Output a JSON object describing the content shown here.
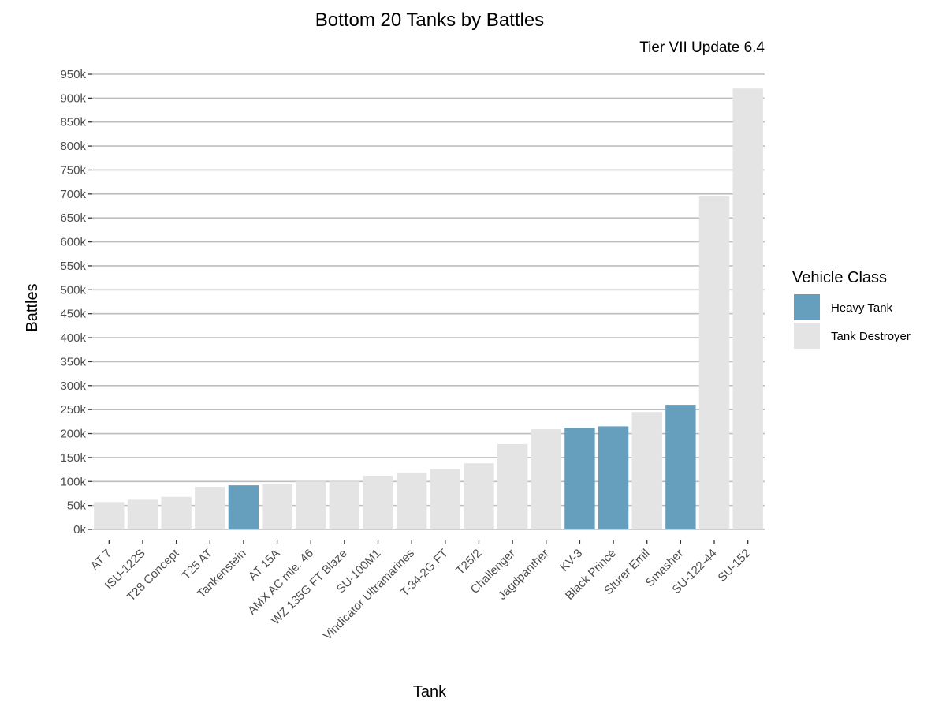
{
  "chart_data": {
    "type": "bar",
    "title": "Bottom 20 Tanks by Battles",
    "subtitle": "Tier VII Update 6.4",
    "xlabel": "Tank",
    "ylabel": "Battles",
    "ylim": [
      0,
      950000
    ],
    "y_ticks": [
      0,
      50000,
      100000,
      150000,
      200000,
      250000,
      300000,
      350000,
      400000,
      450000,
      500000,
      550000,
      600000,
      650000,
      700000,
      750000,
      800000,
      850000,
      900000,
      950000
    ],
    "y_tick_labels": [
      "0k",
      "50k",
      "100k",
      "150k",
      "200k",
      "250k",
      "300k",
      "350k",
      "400k",
      "450k",
      "500k",
      "550k",
      "600k",
      "650k",
      "700k",
      "750k",
      "800k",
      "850k",
      "900k",
      "950k"
    ],
    "grid": true,
    "legend_position": "right",
    "legend_title": "Vehicle Class",
    "classes": [
      {
        "name": "Heavy Tank",
        "color": "#659fbd"
      },
      {
        "name": "Tank Destroyer",
        "color": "#e4e4e4"
      }
    ],
    "categories": [
      "AT 7",
      "ISU-122S",
      "T28 Concept",
      "T25 AT",
      "Tankenstein",
      "AT 15A",
      "AMX AC mle. 46",
      "WZ 135G FT Blaze",
      "SU-100M1",
      "Vindicator Ultramarines",
      "T-34-2G FT",
      "T25/2",
      "Challenger",
      "Jagdpanther",
      "KV-3",
      "Black Prince",
      "Sturer Emil",
      "Smasher",
      "SU-122-44",
      "SU-152"
    ],
    "values": [
      57000,
      62000,
      68000,
      89000,
      92000,
      94000,
      100000,
      100000,
      112000,
      118000,
      126000,
      138000,
      178000,
      209000,
      212000,
      215000,
      245000,
      260000,
      695000,
      920000
    ],
    "vehicle_class": [
      "Tank Destroyer",
      "Tank Destroyer",
      "Tank Destroyer",
      "Tank Destroyer",
      "Heavy Tank",
      "Tank Destroyer",
      "Tank Destroyer",
      "Tank Destroyer",
      "Tank Destroyer",
      "Tank Destroyer",
      "Tank Destroyer",
      "Tank Destroyer",
      "Tank Destroyer",
      "Tank Destroyer",
      "Heavy Tank",
      "Heavy Tank",
      "Tank Destroyer",
      "Heavy Tank",
      "Tank Destroyer",
      "Tank Destroyer"
    ]
  }
}
